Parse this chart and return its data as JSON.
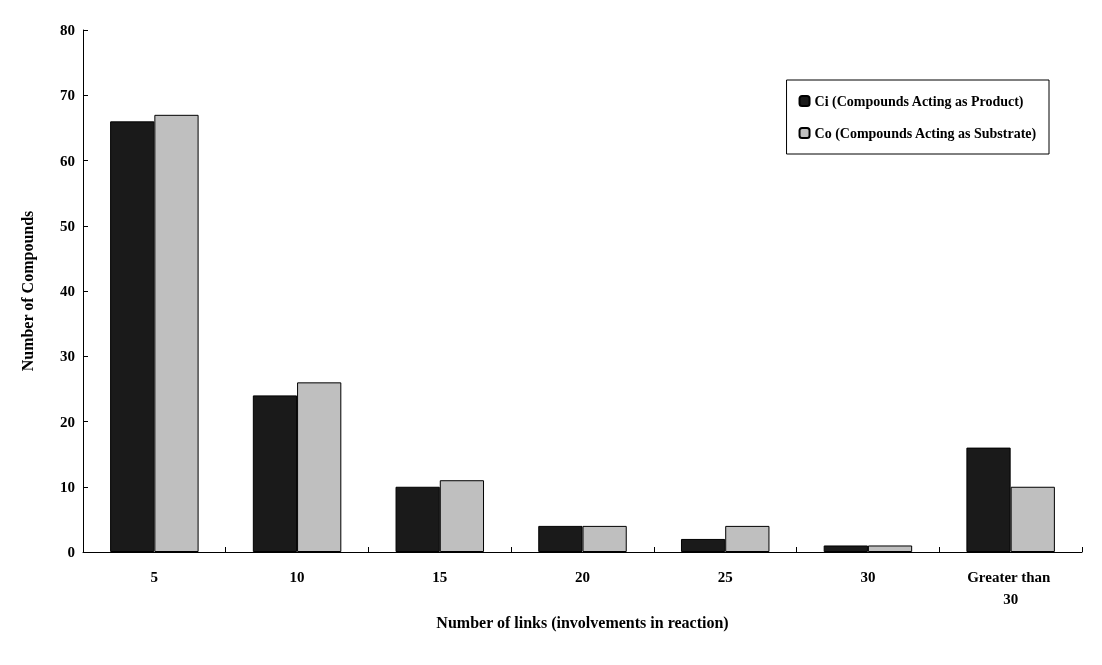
{
  "chart_data": {
    "type": "bar",
    "xlabel": "Number of links (involvements in reaction)",
    "ylabel": "Number of Compounds",
    "categories": [
      "5",
      "10",
      "15",
      "20",
      "25",
      "30",
      "Greater than 30"
    ],
    "series": [
      {
        "name": "Ci (Compounds Acting as Product)",
        "color": "#1a1a1a",
        "values": [
          66,
          24,
          10,
          4,
          2,
          1,
          16
        ]
      },
      {
        "name": "Co (Compounds Acting as Substrate)",
        "color": "#bfbfbf",
        "values": [
          67,
          26,
          11,
          4,
          4,
          1,
          10
        ]
      }
    ],
    "ylim": [
      0,
      80
    ],
    "yticks": [
      0,
      10,
      20,
      30,
      40,
      50,
      60,
      70,
      80
    ],
    "grid": false,
    "legend": "top right"
  }
}
